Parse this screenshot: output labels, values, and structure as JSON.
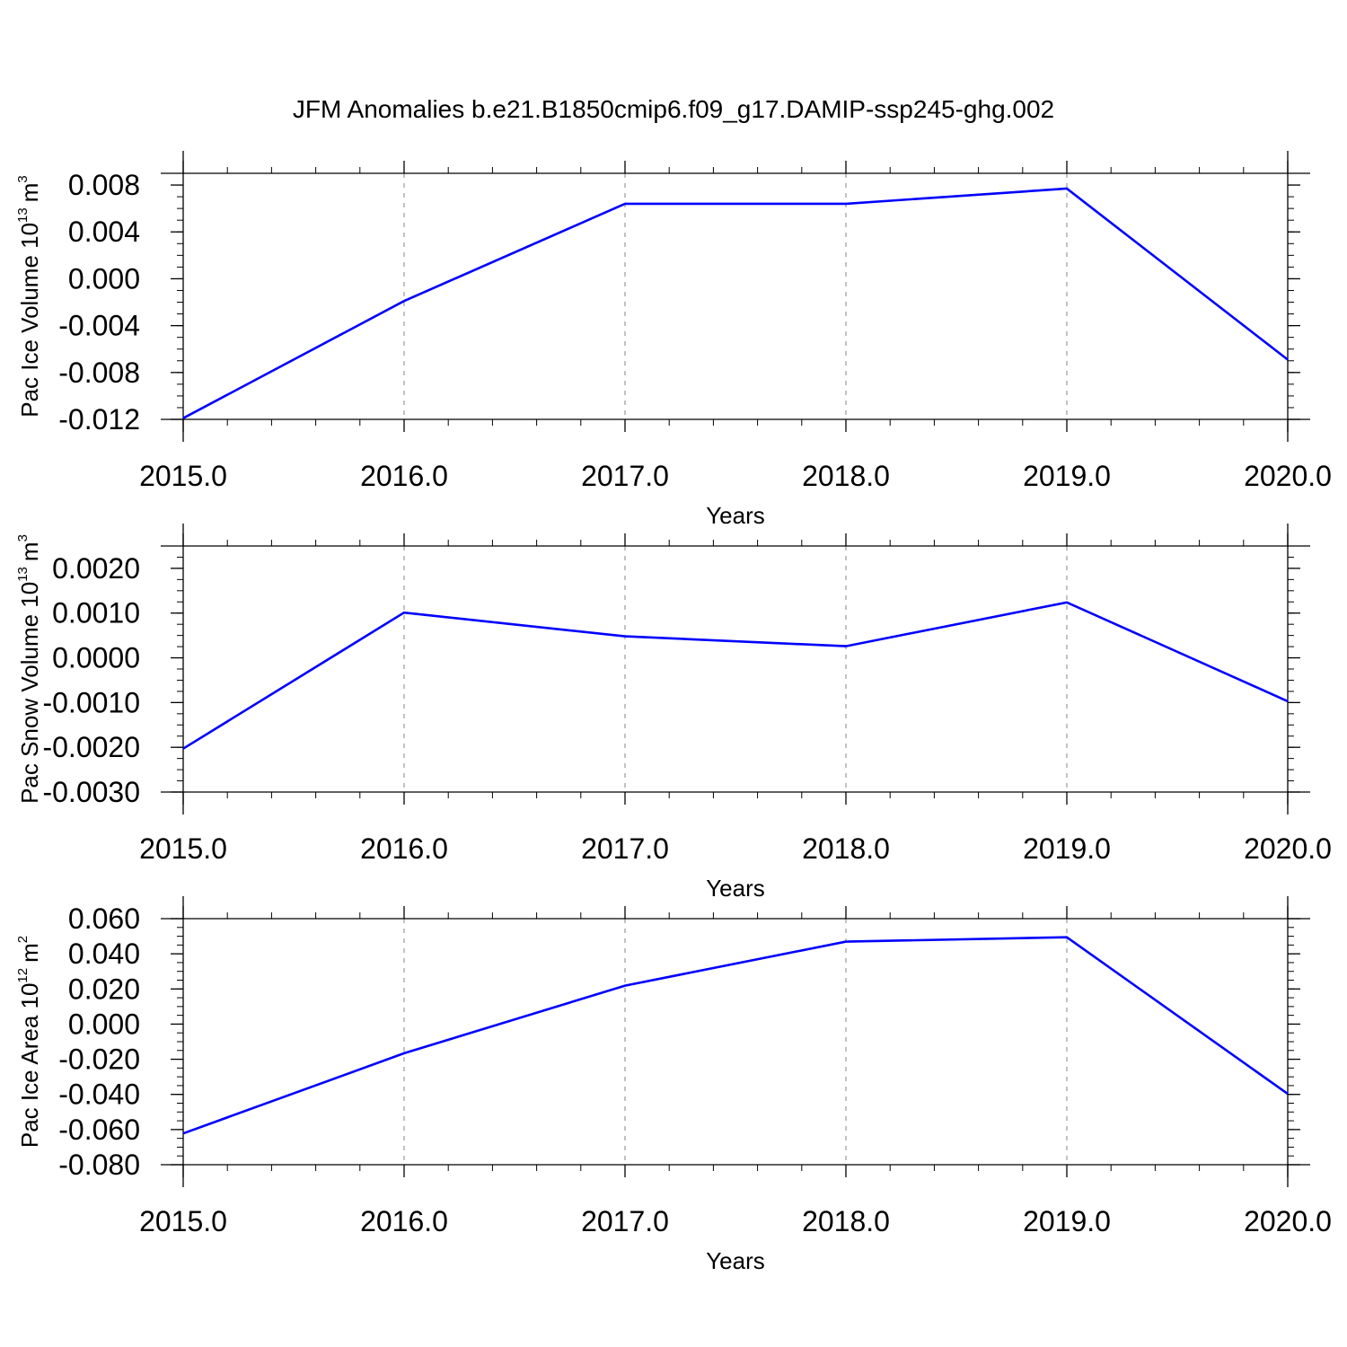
{
  "title": "JFM Anomalies b.e21.B1850cmip6.f09_g17.DAMIP-ssp245-ghg.002",
  "colors": {
    "line": "#0000ff",
    "axis": "#000000",
    "grid": "#999999",
    "background": "#ffffff"
  },
  "chart_data": [
    {
      "type": "line",
      "title": "",
      "xlabel": "Years",
      "ylabel_main": "Pac Ice Volume 10",
      "ylabel_exp": "13",
      "ylabel_unit": "m",
      "ylabel_unit_exp": "3",
      "xlim": [
        2015.0,
        2020.0
      ],
      "ylim": [
        -0.012,
        0.009
      ],
      "xticks": [
        2015.0,
        2016.0,
        2017.0,
        2018.0,
        2019.0,
        2020.0
      ],
      "xtick_labels": [
        "2015.0",
        "2016.0",
        "2017.0",
        "2018.0",
        "2019.0",
        "2020.0"
      ],
      "yticks": [
        -0.012,
        -0.008,
        -0.004,
        0.0,
        0.004,
        0.008
      ],
      "ytick_labels": [
        "-0.012",
        "-0.008",
        "-0.004",
        "0.000",
        "0.004",
        "0.008"
      ],
      "grid": "vertical dashed",
      "series": [
        {
          "x": [
            2015.0,
            2016.0,
            2017.0,
            2018.0,
            2019.0,
            2020.0
          ],
          "values": [
            -0.0119,
            -0.0019,
            0.0064,
            0.0064,
            0.0077,
            -0.0069
          ]
        }
      ]
    },
    {
      "type": "line",
      "title": "",
      "xlabel": "Years",
      "ylabel_main": "Pac Snow Volume 10",
      "ylabel_exp": "13",
      "ylabel_unit": "m",
      "ylabel_unit_exp": "3",
      "xlim": [
        2015.0,
        2020.0
      ],
      "ylim": [
        -0.003,
        0.0025
      ],
      "xticks": [
        2015.0,
        2016.0,
        2017.0,
        2018.0,
        2019.0,
        2020.0
      ],
      "xtick_labels": [
        "2015.0",
        "2016.0",
        "2017.0",
        "2018.0",
        "2019.0",
        "2020.0"
      ],
      "yticks": [
        -0.003,
        -0.002,
        -0.001,
        0.0,
        0.001,
        0.002
      ],
      "ytick_labels": [
        "-0.0030",
        "-0.0020",
        "-0.0010",
        "0.0000",
        "0.0010",
        "0.0020"
      ],
      "grid": "vertical dashed",
      "series": [
        {
          "x": [
            2015.0,
            2016.0,
            2017.0,
            2018.0,
            2019.0,
            2020.0
          ],
          "values": [
            -0.00203,
            0.00101,
            0.00048,
            0.00026,
            0.00124,
            -0.00097
          ]
        }
      ]
    },
    {
      "type": "line",
      "title": "",
      "xlabel": "Years",
      "ylabel_main": "Pac Ice Area 10",
      "ylabel_exp": "12",
      "ylabel_unit": "m",
      "ylabel_unit_exp": "2",
      "xlim": [
        2015.0,
        2020.0
      ],
      "ylim": [
        -0.08,
        0.06
      ],
      "xticks": [
        2015.0,
        2016.0,
        2017.0,
        2018.0,
        2019.0,
        2020.0
      ],
      "xtick_labels": [
        "2015.0",
        "2016.0",
        "2017.0",
        "2018.0",
        "2019.0",
        "2020.0"
      ],
      "yticks": [
        -0.08,
        -0.06,
        -0.04,
        -0.02,
        0.0,
        0.02,
        0.04,
        0.06
      ],
      "ytick_labels": [
        "-0.080",
        "-0.060",
        "-0.040",
        "-0.020",
        "0.000",
        "0.020",
        "0.040",
        "0.060"
      ],
      "grid": "vertical dashed",
      "series": [
        {
          "x": [
            2015.0,
            2016.0,
            2017.0,
            2018.0,
            2019.0,
            2020.0
          ],
          "values": [
            -0.0622,
            -0.0166,
            0.0219,
            0.0469,
            0.0494,
            -0.0397
          ]
        }
      ]
    }
  ]
}
